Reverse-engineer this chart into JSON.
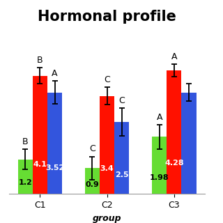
{
  "title": "Hormonal profile",
  "xlabel": "group",
  "groups": [
    "C1",
    "C2",
    "C3"
  ],
  "colors": {
    "green": "#66dd33",
    "red": "#ff1100",
    "blue": "#3355dd"
  },
  "values": {
    "green": [
      1.2,
      0.9,
      1.98
    ],
    "red": [
      4.1,
      3.4,
      4.28
    ],
    "blue": [
      3.52,
      2.5,
      3.52
    ]
  },
  "errors": {
    "green": [
      0.35,
      0.4,
      0.42
    ],
    "red": [
      0.28,
      0.3,
      0.22
    ],
    "blue": [
      0.4,
      0.48,
      0.3
    ]
  },
  "sig_labels": {
    "green": [
      "B",
      "C",
      "A"
    ],
    "red": [
      "B",
      "C",
      "A"
    ],
    "blue": [
      "A",
      "C",
      ""
    ]
  },
  "val_labels": {
    "green": [
      "1.2",
      "0.9",
      "1.98"
    ],
    "red": [
      "4.1",
      "3.4",
      "4.28"
    ],
    "blue": [
      "3.52",
      "2.5",
      ""
    ]
  },
  "val_colors": {
    "green": "#000000",
    "red": "#ffffff",
    "blue": "#ffffff"
  },
  "ylim": [
    0,
    5.8
  ],
  "bar_width": 0.22,
  "title_fontsize": 15,
  "xlabel_fontsize": 9,
  "tick_fontsize": 9,
  "sig_fontsize": 9,
  "val_fontsize": 8
}
